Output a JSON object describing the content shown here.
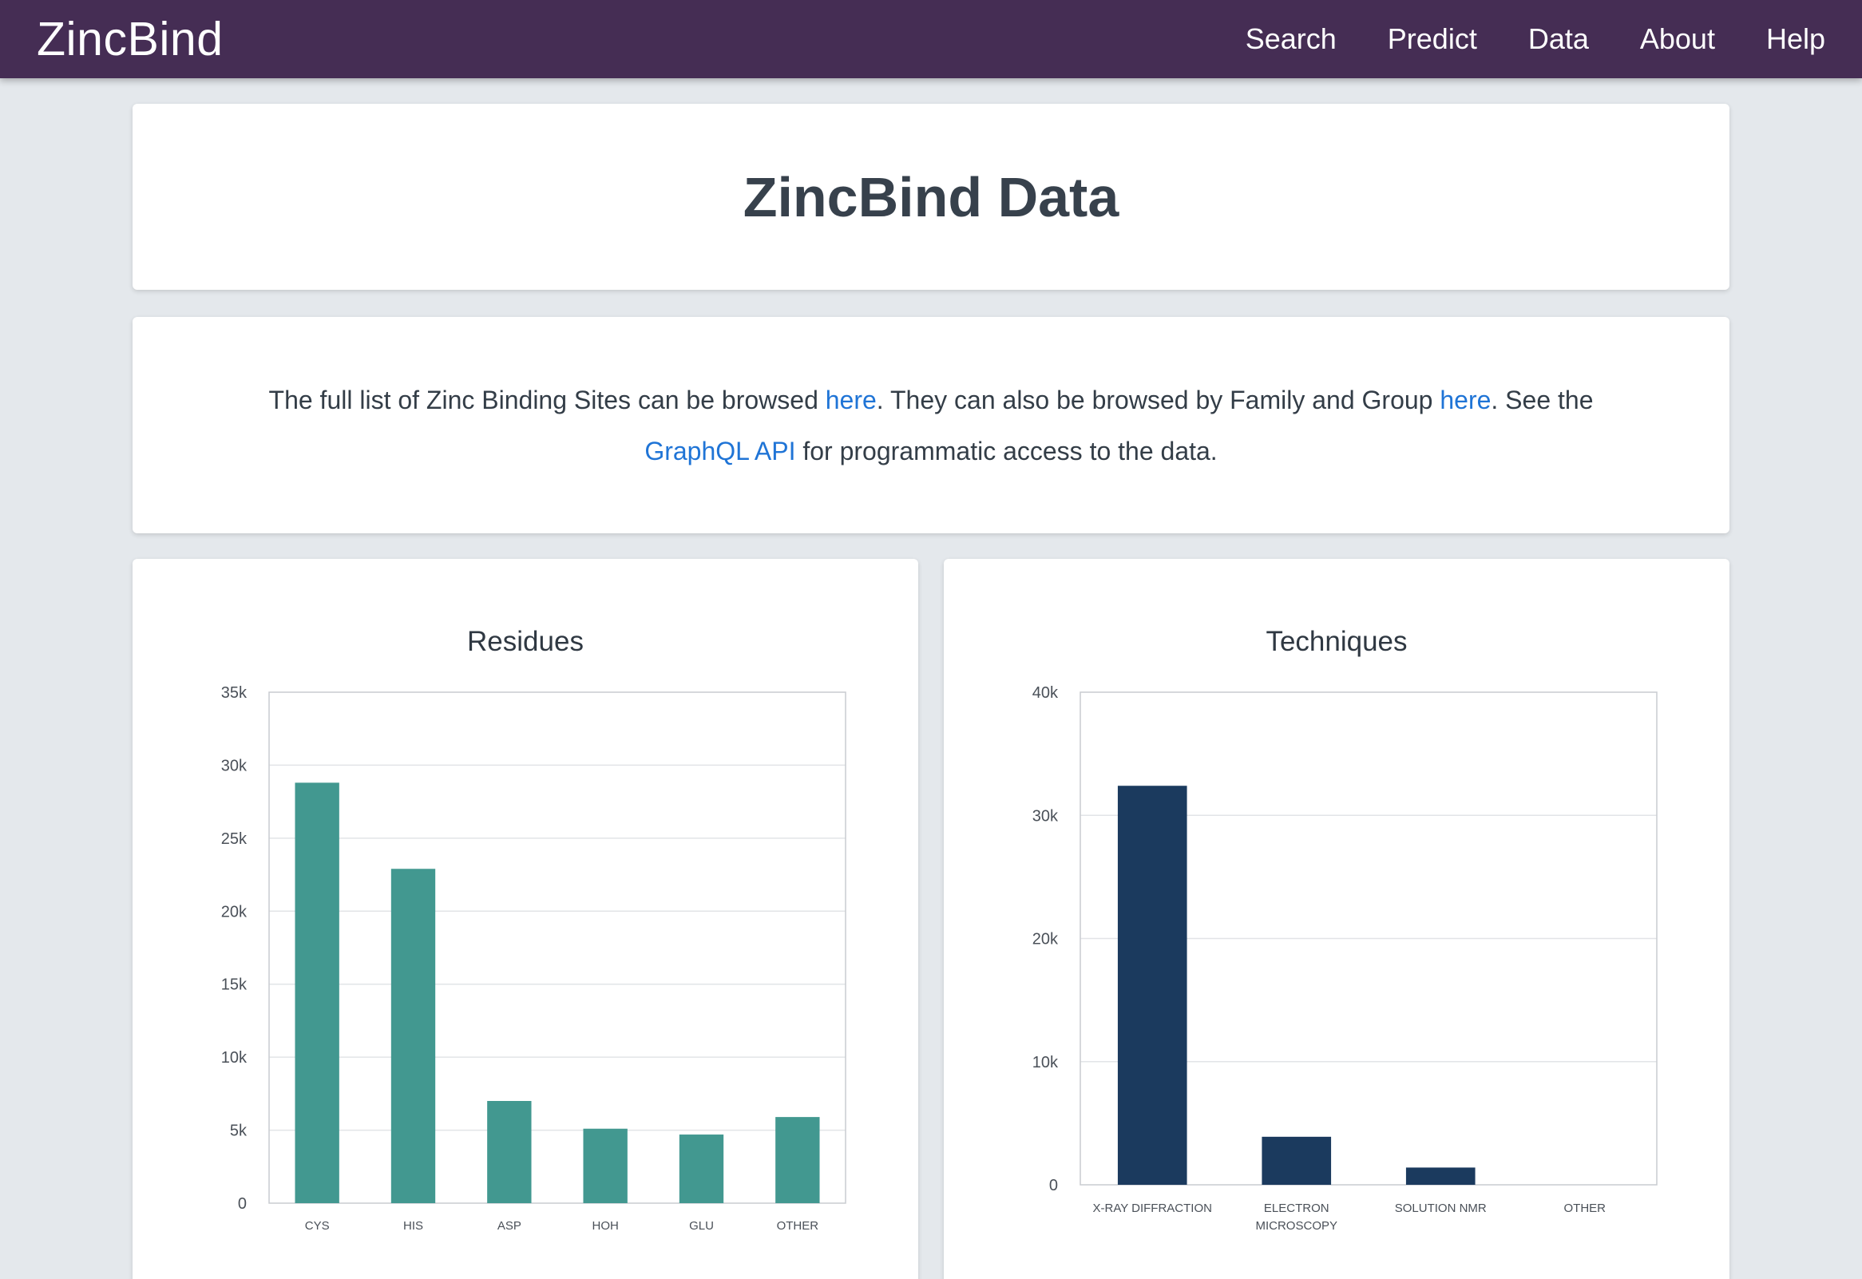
{
  "nav": {
    "brand": "ZincBind",
    "links": [
      "Search",
      "Predict",
      "Data",
      "About",
      "Help"
    ]
  },
  "header": {
    "title": "ZincBind Data"
  },
  "intro": {
    "part1": "The full list of Zinc Binding Sites can be browsed ",
    "link1": "here",
    "part2": ". They can also be browsed by Family and Group ",
    "link2": "here",
    "part3": ". See the ",
    "link3": "GraphQL API",
    "part4": " for programmatic access to the data."
  },
  "colors": {
    "navbar": "#452d54",
    "residues_bar": "#429890",
    "techniques_bar": "#1b3a5e",
    "link": "#1f74d6"
  },
  "chart_data": [
    {
      "type": "bar",
      "title": "Residues",
      "categories": [
        "CYS",
        "HIS",
        "ASP",
        "HOH",
        "GLU",
        "OTHER"
      ],
      "values": [
        28800,
        22900,
        7000,
        5100,
        4700,
        5900
      ],
      "ylim": [
        0,
        35000
      ],
      "yticks": [
        0,
        5000,
        10000,
        15000,
        20000,
        25000,
        30000,
        35000
      ],
      "ytick_labels": [
        "0",
        "5k",
        "10k",
        "15k",
        "20k",
        "25k",
        "30k",
        "35k"
      ],
      "grid": true,
      "color": "#429890"
    },
    {
      "type": "bar",
      "title": "Techniques",
      "categories": [
        "X-RAY DIFFRACTION",
        "ELECTRON MICROSCOPY",
        "SOLUTION NMR",
        "OTHER"
      ],
      "category_lines": [
        [
          "X-RAY DIFFRACTION"
        ],
        [
          "ELECTRON",
          "MICROSCOPY"
        ],
        [
          "SOLUTION NMR"
        ],
        [
          "OTHER"
        ]
      ],
      "values": [
        32400,
        3900,
        1400,
        0
      ],
      "ylim": [
        0,
        40000
      ],
      "yticks": [
        0,
        10000,
        20000,
        30000,
        40000
      ],
      "ytick_labels": [
        "0",
        "10k",
        "20k",
        "30k",
        "40k"
      ],
      "grid": true,
      "color": "#1b3a5e"
    }
  ]
}
